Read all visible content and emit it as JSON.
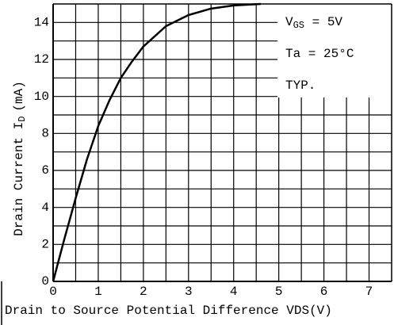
{
  "chart_data": {
    "type": "line",
    "ylabel": {
      "text": "Drain Current I",
      "subscript": "D",
      "unit": "(mA)"
    },
    "xlabel": "Drain to Source Potential Difference VDS(V)",
    "annotations": [
      {
        "text": "V",
        "subscript": "GS",
        "suffix": " = 5V"
      },
      {
        "text": "Ta = 25°C"
      },
      {
        "text": "TYP."
      }
    ],
    "x": [
      0,
      0.25,
      0.5,
      0.75,
      1,
      1.25,
      1.5,
      1.75,
      2,
      2.5,
      3,
      3.5,
      4,
      4.6
    ],
    "series": [
      {
        "color": "#000000",
        "values": [
          0,
          2.3,
          4.5,
          6.6,
          8.4,
          9.8,
          11,
          11.9,
          12.7,
          13.8,
          14.4,
          14.75,
          14.92,
          15
        ]
      }
    ],
    "xlim": [
      0,
      7.5
    ],
    "ylim": [
      0,
      15
    ],
    "xticks": [
      0,
      1,
      2,
      3,
      4,
      5,
      6,
      7
    ],
    "yticks": [
      0,
      2,
      4,
      6,
      8,
      10,
      12,
      14
    ],
    "xminorticks": [
      0.5,
      1.5,
      2.5,
      3.5,
      4.5,
      5.5,
      6.5
    ],
    "yminorticks": [
      1,
      3,
      5,
      7,
      9,
      11,
      13
    ],
    "grid": true
  }
}
